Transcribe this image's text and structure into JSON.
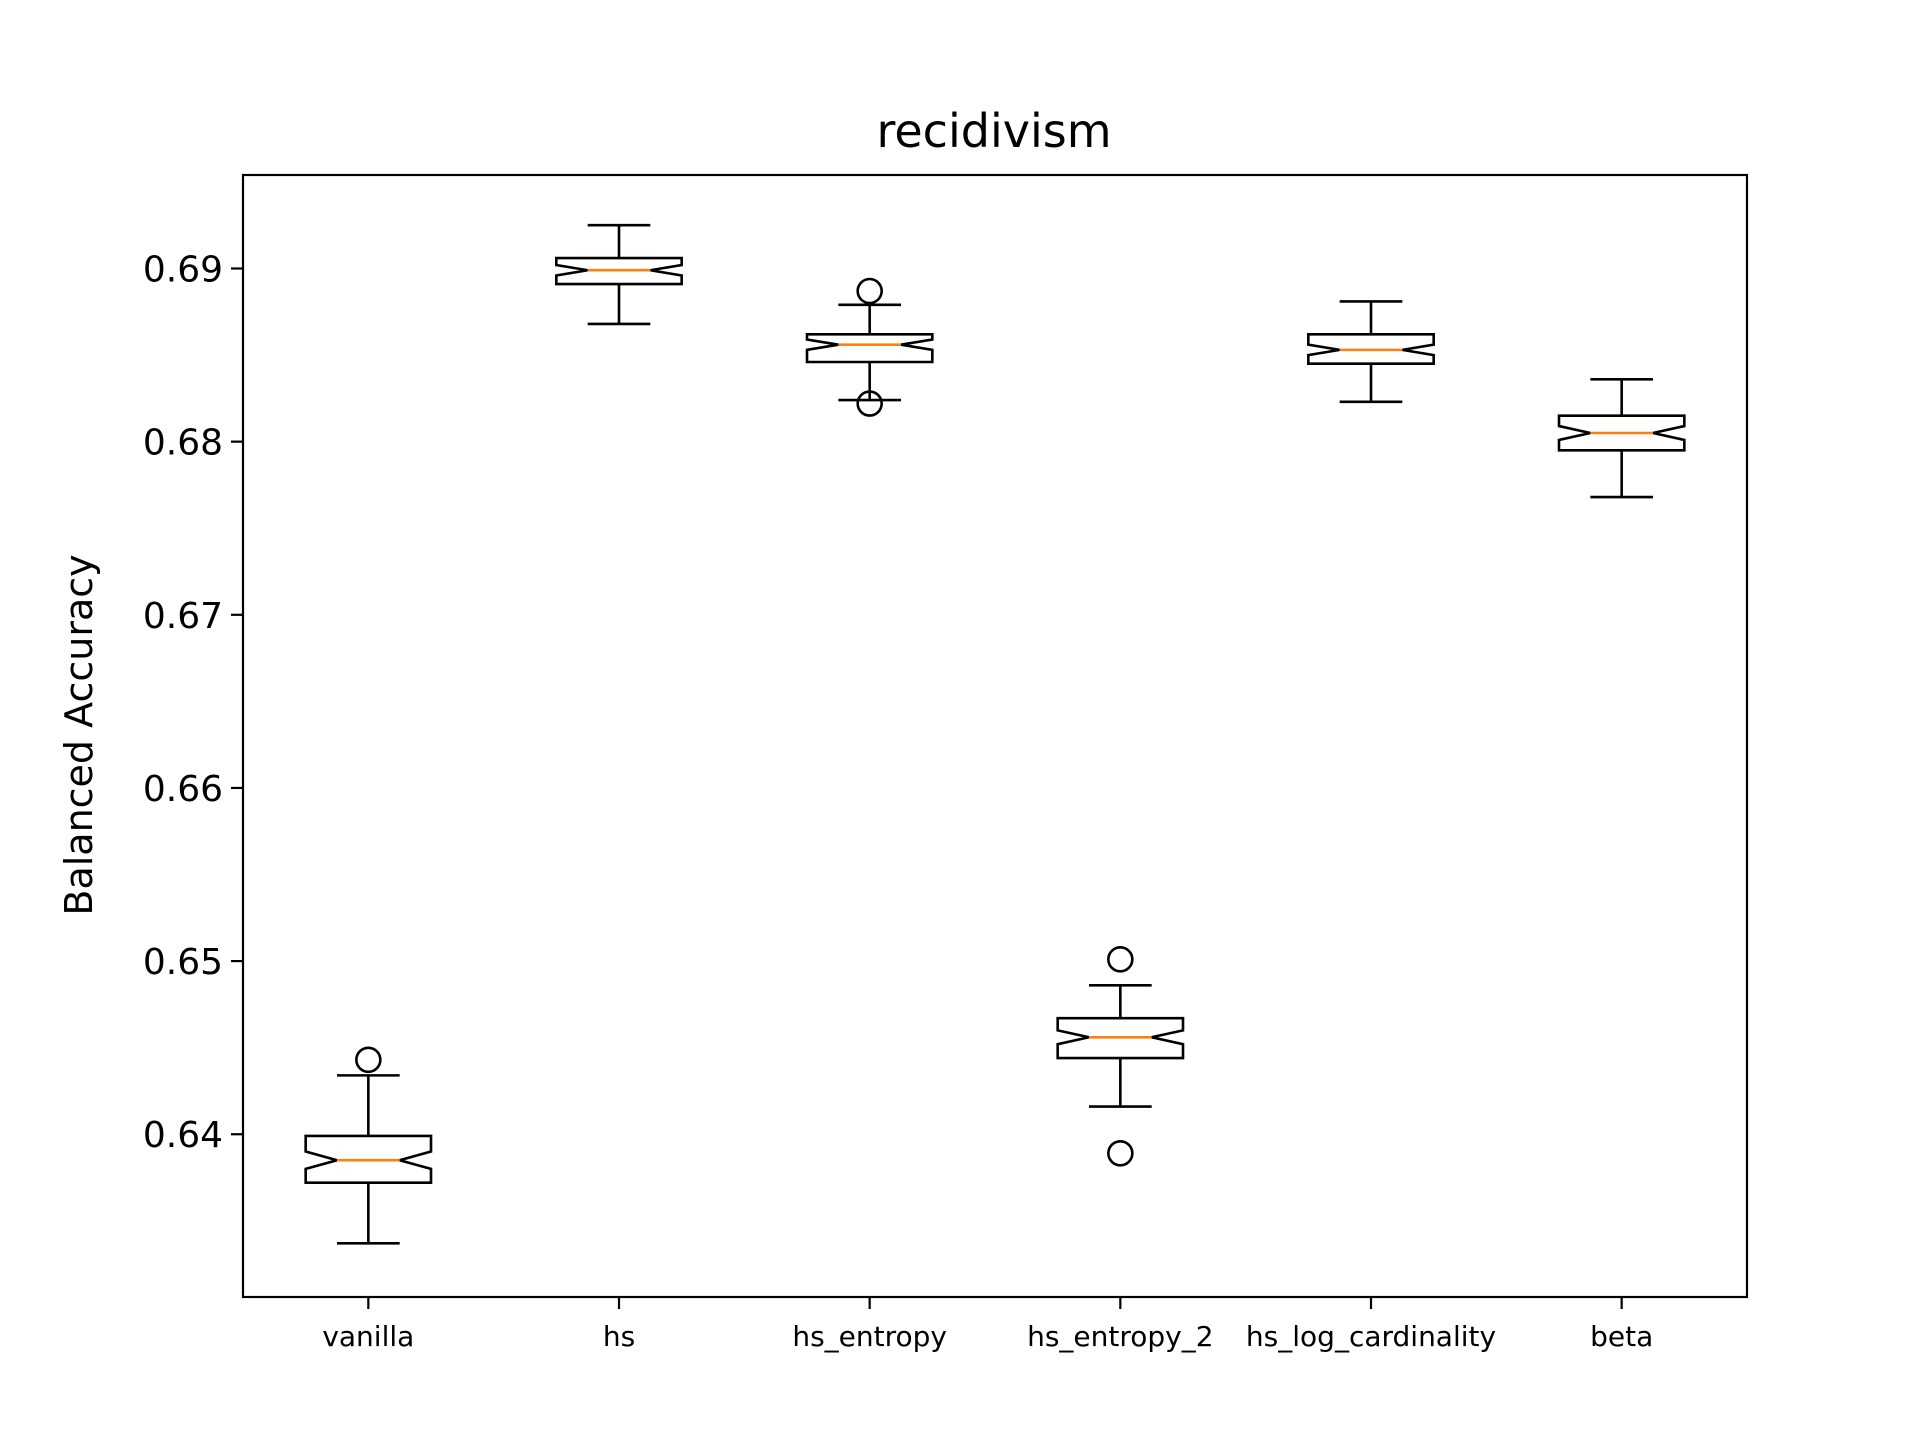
{
  "chart_data": {
    "type": "boxplot",
    "title": "recidivism",
    "xlabel": "",
    "ylabel": "Balanced Accuracy",
    "ylim": [
      0.6306,
      0.6954
    ],
    "yticks": [
      0.64,
      0.65,
      0.66,
      0.67,
      0.68,
      0.69
    ],
    "ytick_labels": [
      "0.64",
      "0.65",
      "0.66",
      "0.67",
      "0.68",
      "0.69"
    ],
    "grid": false,
    "notched": true,
    "colors": {
      "box": "#000000",
      "median": "#ff7f0e",
      "background": "#ffffff"
    },
    "categories": [
      "vanilla",
      "hs",
      "hs_entropy",
      "hs_entropy_2",
      "hs_log_cardinality",
      "beta"
    ],
    "boxes": [
      {
        "name": "vanilla",
        "whislo": 0.6337,
        "q1": 0.6372,
        "med": 0.6385,
        "q3": 0.6399,
        "whishi": 0.6434,
        "notch_lo": 0.638,
        "notch_hi": 0.639,
        "fliers": [
          0.6443
        ]
      },
      {
        "name": "hs",
        "whislo": 0.6868,
        "q1": 0.6891,
        "med": 0.6899,
        "q3": 0.6906,
        "whishi": 0.6925,
        "notch_lo": 0.6896,
        "notch_hi": 0.6902,
        "fliers": []
      },
      {
        "name": "hs_entropy",
        "whislo": 0.6824,
        "q1": 0.6846,
        "med": 0.6856,
        "q3": 0.6862,
        "whishi": 0.6879,
        "notch_lo": 0.6853,
        "notch_hi": 0.6859,
        "fliers": [
          0.6887,
          0.6822
        ]
      },
      {
        "name": "hs_entropy_2",
        "whislo": 0.6416,
        "q1": 0.6444,
        "med": 0.6456,
        "q3": 0.6467,
        "whishi": 0.6486,
        "notch_lo": 0.6452,
        "notch_hi": 0.646,
        "fliers": [
          0.6501,
          0.6389
        ]
      },
      {
        "name": "hs_log_cardinality",
        "whislo": 0.6823,
        "q1": 0.6845,
        "med": 0.6853,
        "q3": 0.6862,
        "whishi": 0.6881,
        "notch_lo": 0.685,
        "notch_hi": 0.6856,
        "fliers": []
      },
      {
        "name": "beta",
        "whislo": 0.6768,
        "q1": 0.6795,
        "med": 0.6805,
        "q3": 0.6815,
        "whishi": 0.6836,
        "notch_lo": 0.6801,
        "notch_hi": 0.6809,
        "fliers": []
      }
    ]
  }
}
